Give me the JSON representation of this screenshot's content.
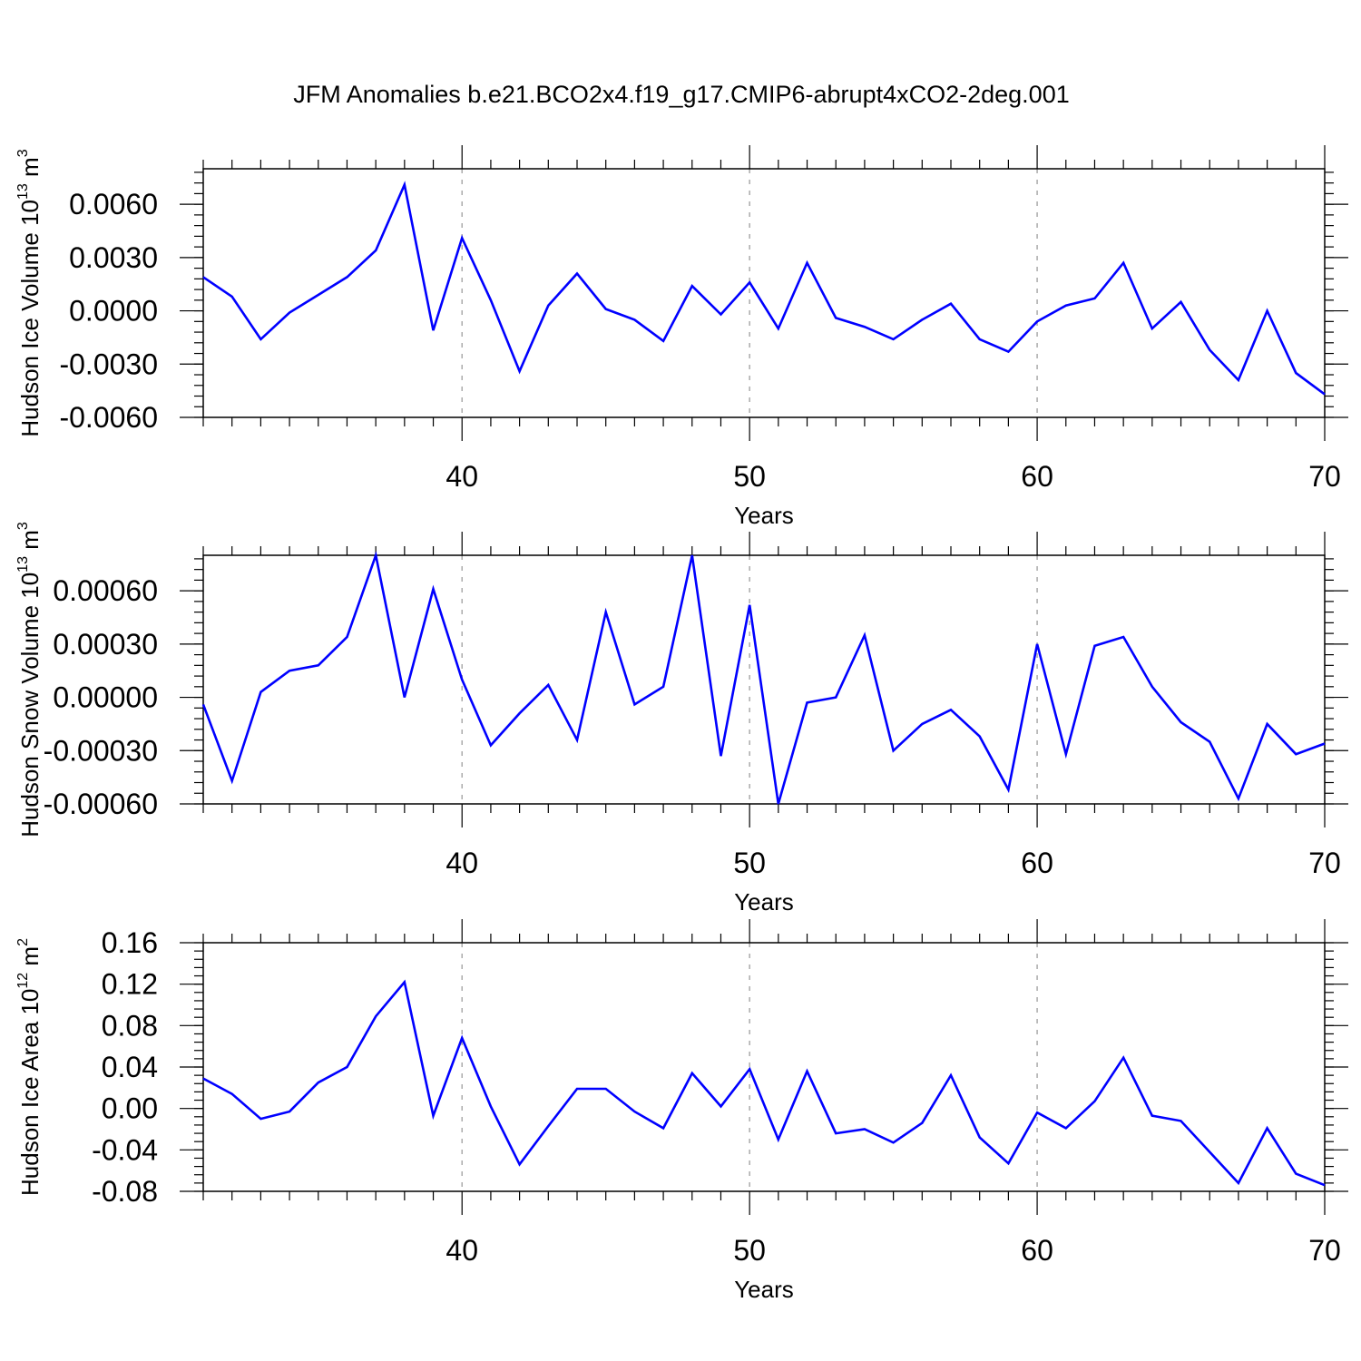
{
  "chart_data": {
    "type": "line",
    "title": "JFM Anomalies b.e21.BCO2x4.f19_g17.CMIP6-abrupt4xCO2-2deg.001",
    "line_color": "#0000ff",
    "x": [
      31,
      32,
      33,
      34,
      35,
      36,
      37,
      38,
      39,
      40,
      41,
      42,
      43,
      44,
      45,
      46,
      47,
      48,
      49,
      50,
      51,
      52,
      53,
      54,
      55,
      56,
      57,
      58,
      59,
      60,
      61,
      62,
      63,
      64,
      65,
      66,
      67,
      68,
      69,
      70
    ],
    "xlim": [
      31,
      70
    ],
    "major_xticks": [
      40,
      50,
      60,
      70
    ],
    "panels": [
      {
        "ylabel_main": "Hudson Ice Volume 10",
        "ylabel_exp": "13",
        "ylabel_unit": " m",
        "ylabel_unit_exp": "3",
        "xlabel": "Years",
        "ylim": [
          -0.006,
          0.008
        ],
        "yticks": [
          -0.006,
          -0.003,
          0.0,
          0.003,
          0.006
        ],
        "ytick_labels": [
          "-0.0060",
          "-0.0030",
          "0.0000",
          "0.0030",
          "0.0060"
        ],
        "minor_ystep": 0.0006,
        "xtick_labels": [
          "40",
          "50",
          "60",
          "70"
        ],
        "values": [
          0.0019,
          0.0008,
          -0.0016,
          -0.0001,
          0.0009,
          0.0019,
          0.0034,
          0.0071,
          -0.0011,
          0.0041,
          0.0006,
          -0.0034,
          0.0003,
          0.0021,
          0.0001,
          -0.0005,
          -0.0017,
          0.0014,
          -0.0002,
          0.0016,
          -0.001,
          0.0027,
          -0.0004,
          -0.0009,
          -0.0016,
          -0.0005,
          0.0004,
          -0.0016,
          -0.0023,
          -0.0006,
          0.0003,
          0.0007,
          0.0027,
          -0.001,
          0.0005,
          -0.0022,
          -0.0039,
          0.0,
          -0.0035,
          -0.0047
        ]
      },
      {
        "ylabel_main": "Hudson Snow Volume 10",
        "ylabel_exp": "13",
        "ylabel_unit": " m",
        "ylabel_unit_exp": "3",
        "xlabel": "Years",
        "ylim": [
          -0.0006,
          0.0008
        ],
        "yticks": [
          -0.0006,
          -0.0003,
          0.0,
          0.0003,
          0.0006
        ],
        "ytick_labels": [
          "-0.00060",
          "-0.00030",
          "0.00000",
          "0.00030",
          "0.00060"
        ],
        "minor_ystep": 6e-05,
        "xtick_labels": [
          "40",
          "50",
          "60",
          "70"
        ],
        "values": [
          -4e-05,
          -0.00047,
          3e-05,
          0.00015,
          0.00018,
          0.00034,
          0.0008,
          0.0,
          0.00061,
          0.0001,
          -0.00027,
          -9e-05,
          7e-05,
          -0.00024,
          0.00048,
          -4e-05,
          6e-05,
          0.0008,
          -0.00033,
          0.00052,
          -0.0006,
          -3e-05,
          0.0,
          0.00035,
          -0.0003,
          -0.00015,
          -7e-05,
          -0.00022,
          -0.00052,
          0.0003,
          -0.00032,
          0.00029,
          0.00034,
          6e-05,
          -0.00014,
          -0.00025,
          -0.00057,
          -0.00015,
          -0.00032,
          -0.00026
        ]
      },
      {
        "ylabel_main": "Hudson Ice Area 10",
        "ylabel_exp": "12",
        "ylabel_unit": " m",
        "ylabel_unit_exp": "2",
        "xlabel": "Years",
        "ylim": [
          -0.08,
          0.16
        ],
        "yticks": [
          -0.08,
          -0.04,
          0.0,
          0.04,
          0.08,
          0.12,
          0.16
        ],
        "ytick_labels": [
          "-0.08",
          "-0.04",
          "0.00",
          "0.04",
          "0.08",
          "0.12",
          "0.16"
        ],
        "minor_ystep": 0.008,
        "xtick_labels": [
          "40",
          "50",
          "60",
          "70"
        ],
        "values": [
          0.029,
          0.014,
          -0.01,
          -0.003,
          0.025,
          0.04,
          0.089,
          0.122,
          -0.007,
          0.068,
          0.002,
          -0.054,
          -0.017,
          0.019,
          0.019,
          -0.003,
          -0.019,
          0.034,
          0.002,
          0.038,
          -0.03,
          0.036,
          -0.024,
          -0.02,
          -0.033,
          -0.014,
          0.032,
          -0.028,
          -0.053,
          -0.004,
          -0.019,
          0.007,
          0.049,
          -0.007,
          -0.012,
          -0.042,
          -0.072,
          -0.019,
          -0.063,
          -0.074
        ]
      }
    ]
  }
}
